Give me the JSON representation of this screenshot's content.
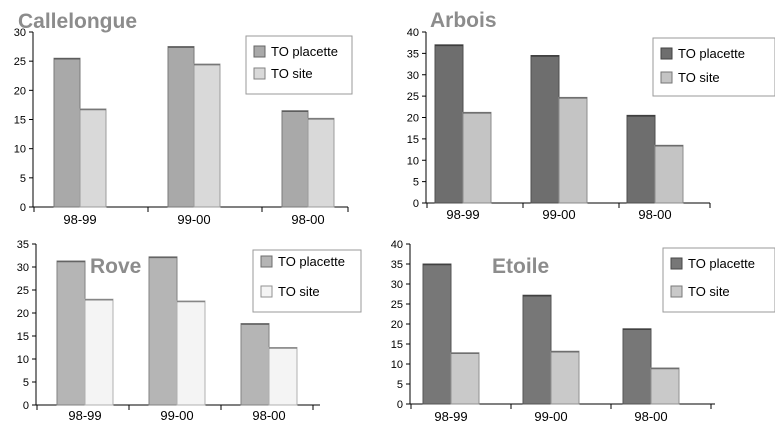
{
  "chart_data": [
    {
      "type": "bar",
      "title": "Callelongue",
      "categories": [
        "98-99",
        "99-00",
        "98-00"
      ],
      "ylim": [
        0,
        30
      ],
      "yticks": [
        0,
        5,
        10,
        15,
        20,
        25,
        30
      ],
      "legend_position": "top-right",
      "series": [
        {
          "name": "TO placette",
          "values": [
            25.5,
            27.5,
            16.5
          ],
          "color": "#a9a9a9"
        },
        {
          "name": "TO site",
          "values": [
            16.8,
            24.5,
            15.2
          ],
          "color": "#d9d9d9"
        }
      ]
    },
    {
      "type": "bar",
      "title": "Arbois",
      "categories": [
        "98-99",
        "99-00",
        "98-00"
      ],
      "ylim": [
        0,
        40
      ],
      "yticks": [
        0,
        5,
        10,
        15,
        20,
        25,
        30,
        35,
        40
      ],
      "legend_position": "top-right",
      "series": [
        {
          "name": "TO placette",
          "values": [
            37,
            34.5,
            20.5
          ],
          "color": "#6e6e6e"
        },
        {
          "name": "TO site",
          "values": [
            21.2,
            24.7,
            13.5
          ],
          "color": "#c4c4c4"
        }
      ]
    },
    {
      "type": "bar",
      "title": "Rove",
      "categories": [
        "98-99",
        "99-00",
        "98-00"
      ],
      "ylim": [
        0,
        35
      ],
      "yticks": [
        0,
        5,
        10,
        15,
        20,
        25,
        30,
        35
      ],
      "legend_position": "top-right",
      "series": [
        {
          "name": "TO placette",
          "values": [
            31.3,
            32.2,
            17.7
          ],
          "color": "#b5b5b5"
        },
        {
          "name": "TO site",
          "values": [
            23,
            22.6,
            12.5
          ],
          "color": "#f4f4f4"
        }
      ]
    },
    {
      "type": "bar",
      "title": "Etoile",
      "categories": [
        "98-99",
        "99-00",
        "98-00"
      ],
      "ylim": [
        0,
        40
      ],
      "yticks": [
        0,
        5,
        10,
        15,
        20,
        25,
        30,
        35,
        40
      ],
      "legend_position": "top-right",
      "series": [
        {
          "name": "TO placette",
          "values": [
            35,
            27.2,
            18.8
          ],
          "color": "#777777"
        },
        {
          "name": "TO site",
          "values": [
            12.8,
            13.2,
            9
          ],
          "color": "#c9c9c9"
        }
      ]
    }
  ]
}
